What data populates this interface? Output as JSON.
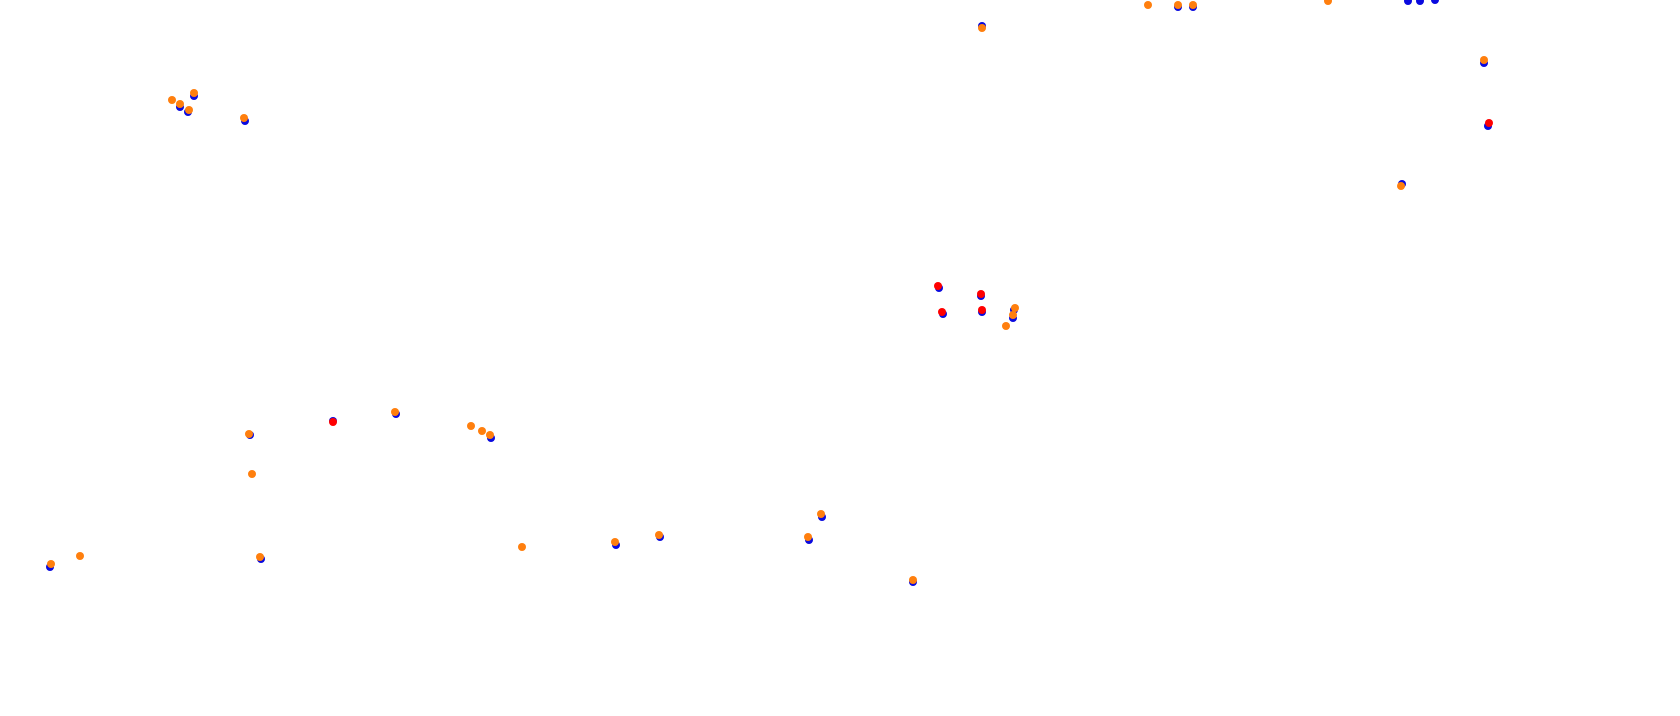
{
  "colors": {
    "background": "#ffffff",
    "blue": "#0a0adf",
    "orange": "#ff7f0e",
    "red": "#ff0000"
  }
}
